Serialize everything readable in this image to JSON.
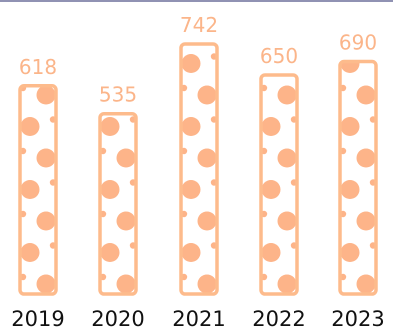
{
  "colors": {
    "bar": "#fdbb8c",
    "dots": "#fdb489",
    "label": "#fbb58a",
    "axis_text": "#111111",
    "top_rule": "#6b6f9a"
  },
  "chart_data": {
    "type": "bar",
    "categories": [
      "2019",
      "2020",
      "2021",
      "2022",
      "2023"
    ],
    "values": [
      618,
      535,
      742,
      650,
      690
    ],
    "title": "",
    "xlabel": "",
    "ylabel": "",
    "grid": false,
    "legend": "none"
  }
}
